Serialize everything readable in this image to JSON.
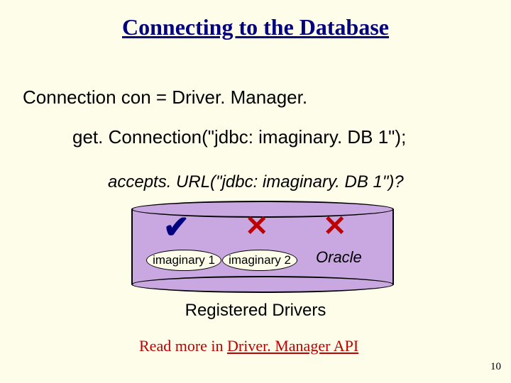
{
  "title": "Connecting to the Database",
  "code": {
    "line1": "Connection con = Driver. Manager.",
    "line2": "get. Connection(\"jdbc: imaginary. DB 1\");"
  },
  "question": "accepts. URL(\"jdbc: imaginary. DB 1\")?",
  "marks": {
    "check": "✔",
    "x": "✕"
  },
  "drivers": {
    "d1": "imaginary 1",
    "d2": "imaginary 2",
    "d3": "Oracle"
  },
  "caption": "Registered Drivers",
  "readmore_prefix": "Read more in ",
  "readmore_link": "Driver. Manager API",
  "pagenum": "10",
  "colors": {
    "background": "#fdfdea",
    "title": "#000080",
    "check": "#000080",
    "cross": "#c00000",
    "readmore": "#c00000",
    "cylinder_fill": "#c9a8e2",
    "cylinder_border": "#000000"
  }
}
